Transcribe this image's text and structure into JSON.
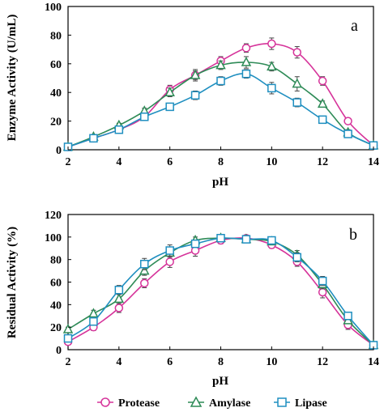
{
  "chart_data": [
    {
      "type": "line",
      "panel_label": "a",
      "xlabel": "pH",
      "ylabel": "Enzyme Activity (U/mL)",
      "xlim": [
        2,
        14
      ],
      "ylim": [
        0,
        100
      ],
      "xticks": [
        2,
        4,
        6,
        8,
        10,
        12,
        14
      ],
      "yticks": [
        0,
        20,
        40,
        60,
        80,
        100
      ],
      "grid": false,
      "x": [
        2,
        3,
        4,
        5,
        6,
        7,
        8,
        9,
        10,
        11,
        12,
        13,
        14
      ],
      "series": [
        {
          "name": "Protease",
          "color": "#d6339a",
          "marker": "circle",
          "values": [
            2,
            8,
            14,
            23,
            42,
            52,
            62,
            71,
            74,
            68,
            48,
            20,
            3
          ],
          "errors": [
            1,
            1,
            1.5,
            2,
            3,
            3,
            3,
            3,
            4,
            4,
            3,
            2,
            1
          ]
        },
        {
          "name": "Amylase",
          "color": "#2e8b57",
          "marker": "triangle",
          "values": [
            2,
            9,
            17,
            27,
            40,
            52,
            59,
            61,
            58,
            46,
            32,
            12,
            3
          ],
          "errors": [
            1,
            1,
            1.5,
            2,
            3,
            4,
            3,
            4,
            3,
            5,
            2,
            2,
            1
          ]
        },
        {
          "name": "Lipase",
          "color": "#1f8fc0",
          "marker": "square",
          "values": [
            2,
            8,
            14,
            23,
            30,
            38,
            48,
            53,
            43,
            33,
            21,
            11,
            3
          ],
          "errors": [
            1,
            1,
            1.5,
            2,
            2,
            3,
            3,
            3,
            4,
            3,
            2,
            1,
            1
          ]
        }
      ]
    },
    {
      "type": "line",
      "panel_label": "b",
      "xlabel": "pH",
      "ylabel": "Residual Activity (%)",
      "xlim": [
        2,
        14
      ],
      "ylim": [
        0,
        120
      ],
      "xticks": [
        2,
        4,
        6,
        8,
        10,
        12,
        14
      ],
      "yticks": [
        0,
        20,
        40,
        60,
        80,
        100,
        120
      ],
      "grid": false,
      "x": [
        2,
        3,
        4,
        5,
        6,
        7,
        8,
        9,
        10,
        11,
        12,
        13,
        14
      ],
      "series": [
        {
          "name": "Protease",
          "color": "#d6339a",
          "marker": "circle",
          "values": [
            7,
            20,
            37,
            59,
            78,
            88,
            97,
            99,
            93,
            78,
            51,
            22,
            4
          ],
          "errors": [
            2,
            3,
            4,
            4,
            5,
            5,
            3,
            2,
            3,
            4,
            5,
            4,
            1
          ]
        },
        {
          "name": "Amylase",
          "color": "#2e8b57",
          "marker": "triangle",
          "values": [
            18,
            32,
            45,
            70,
            86,
            97,
            99,
            98,
            96,
            84,
            58,
            26,
            4
          ],
          "errors": [
            2,
            3,
            4,
            4,
            4,
            3,
            2,
            2,
            3,
            4,
            4,
            3,
            1
          ]
        },
        {
          "name": "Lipase",
          "color": "#1f8fc0",
          "marker": "square",
          "values": [
            10,
            25,
            53,
            76,
            88,
            94,
            99,
            98,
            97,
            82,
            61,
            30,
            4
          ],
          "errors": [
            2,
            3,
            4,
            5,
            5,
            3,
            2,
            2,
            2,
            4,
            4,
            3,
            1
          ]
        }
      ]
    }
  ],
  "legend": {
    "placement": "bottom",
    "items": [
      {
        "name": "Protease",
        "color": "#d6339a",
        "marker": "circle"
      },
      {
        "name": "Amylase",
        "color": "#2e8b57",
        "marker": "triangle"
      },
      {
        "name": "Lipase",
        "color": "#1f8fc0",
        "marker": "square"
      }
    ]
  }
}
